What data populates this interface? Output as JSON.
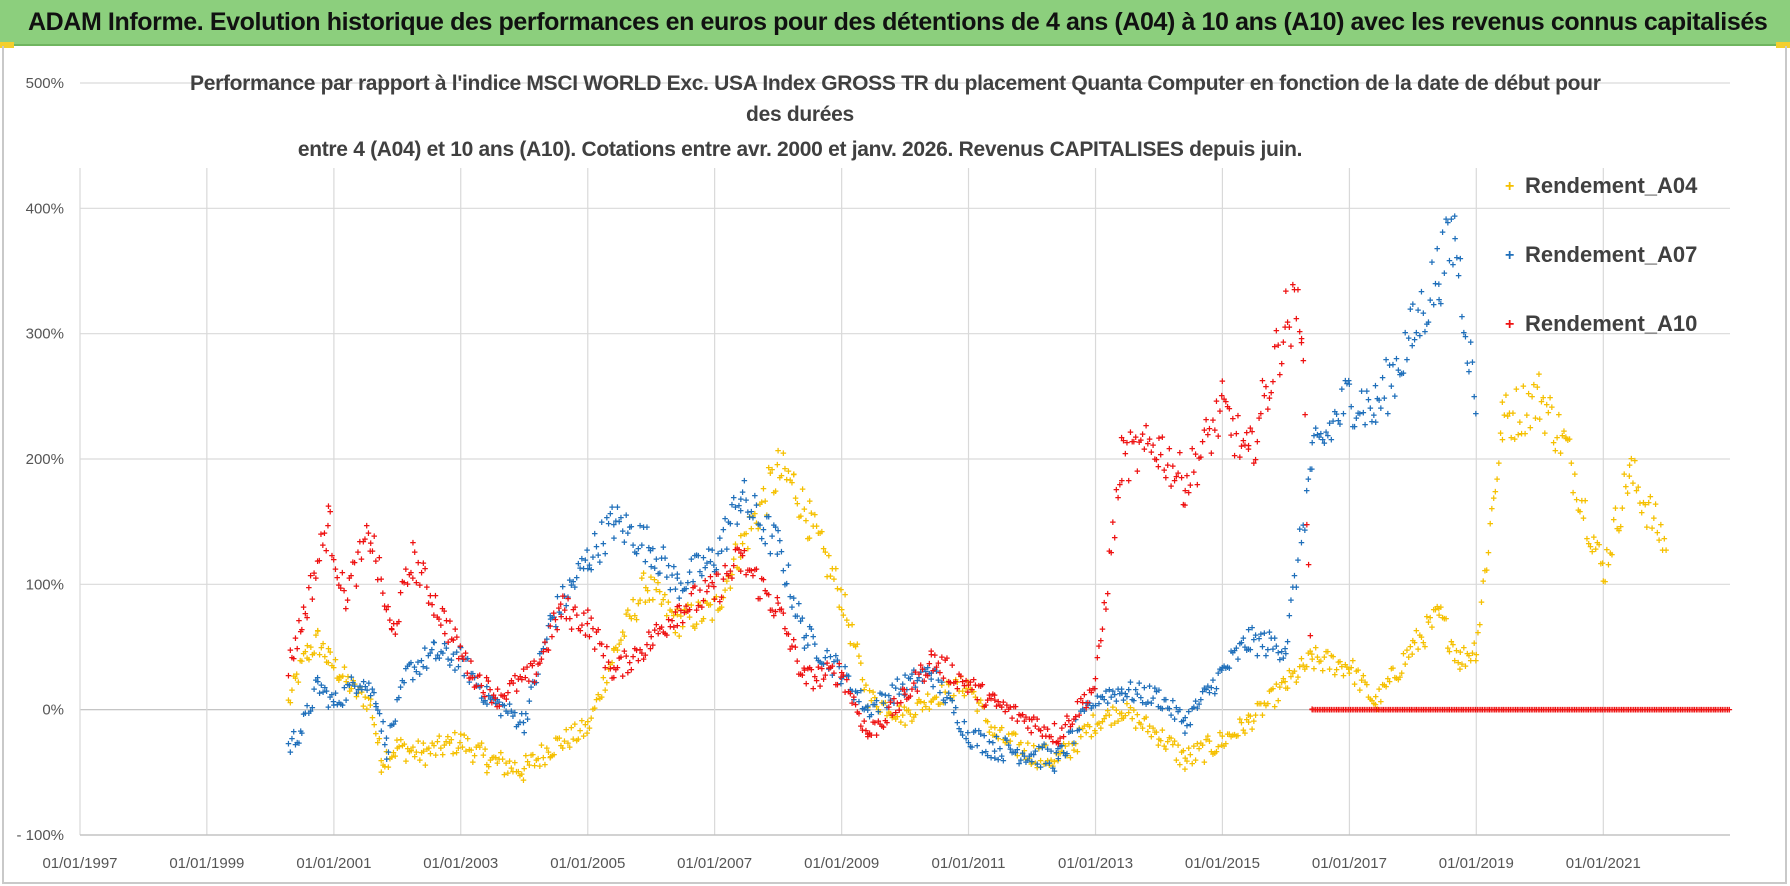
{
  "banner": {
    "title": "ADAM Informe. Evolution historique des performances en euros pour des détentions de 4 ans (A04) à 10 ans (A10) avec les revenus connus capitalisés"
  },
  "colors": {
    "banner_bg": "#8ccf7d",
    "accent_corner": "#f4cf2d",
    "A04": "#f5c000",
    "A07": "#1f6fba",
    "A10": "#ee1111"
  },
  "chart_data": {
    "type": "scatter",
    "marker": "plus",
    "title_lines": [
      "Performance par rapport à l'indice MSCI WORLD Exc. USA Index GROSS TR  du placement Quanta Computer  en fonction de la date de début pour",
      "des durées",
      "entre 4 (A04) et 10 ans (A10).  Cotations entre avr. 2000 et janv. 2026. Revenus CAPITALISES depuis juin."
    ],
    "x_type": "date",
    "xlim": [
      "1997-01-01",
      "2022-12-31"
    ],
    "x_tick_labels": [
      "01/01/1997",
      "01/01/1999",
      "01/01/2001",
      "01/01/2003",
      "01/01/2005",
      "01/01/2007",
      "01/01/2009",
      "01/01/2011",
      "01/01/2013",
      "01/01/2015",
      "01/01/2017",
      "01/01/2019",
      "01/01/2021"
    ],
    "x_ticks": [
      "1997-01-01",
      "1999-01-01",
      "2001-01-01",
      "2003-01-01",
      "2005-01-01",
      "2007-01-01",
      "2009-01-01",
      "2011-01-01",
      "2013-01-01",
      "2015-01-01",
      "2017-01-01",
      "2019-01-01",
      "2021-01-01"
    ],
    "ylim": [
      -100,
      500
    ],
    "y_ticks": [
      -100,
      0,
      100,
      200,
      300,
      400,
      500
    ],
    "y_tick_labels": [
      "- 100%",
      "0%",
      "100%",
      "200%",
      "300%",
      "400%",
      "500%"
    ],
    "grid": true,
    "legend_position": "top-right",
    "series": [
      {
        "name": "Rendement_A04",
        "color": "#f5c000",
        "points": [
          [
            "2000-04-15",
            5
          ],
          [
            "2000-06-01",
            25
          ],
          [
            "2000-08-01",
            45
          ],
          [
            "2000-10-01",
            55
          ],
          [
            "2000-12-01",
            40
          ],
          [
            "2001-02-01",
            30
          ],
          [
            "2001-05-01",
            15
          ],
          [
            "2001-08-01",
            5
          ],
          [
            "2001-10-01",
            -40
          ],
          [
            "2002-01-01",
            -30
          ],
          [
            "2002-06-01",
            -35
          ],
          [
            "2003-01-01",
            -25
          ],
          [
            "2003-06-01",
            -40
          ],
          [
            "2004-01-01",
            -48
          ],
          [
            "2004-06-01",
            -30
          ],
          [
            "2005-01-01",
            -15
          ],
          [
            "2005-06-01",
            45
          ],
          [
            "2005-12-01",
            100
          ],
          [
            "2006-06-01",
            70
          ],
          [
            "2007-01-01",
            80
          ],
          [
            "2007-06-01",
            130
          ],
          [
            "2008-01-01",
            190
          ],
          [
            "2008-04-01",
            180
          ],
          [
            "2008-07-01",
            150
          ],
          [
            "2009-01-01",
            90
          ],
          [
            "2009-06-01",
            10
          ],
          [
            "2010-01-01",
            -5
          ],
          [
            "2010-06-01",
            10
          ],
          [
            "2011-01-01",
            20
          ],
          [
            "2011-06-01",
            -20
          ],
          [
            "2012-01-01",
            -35
          ],
          [
            "2012-06-01",
            -40
          ],
          [
            "2013-01-01",
            -10
          ],
          [
            "2013-06-01",
            0
          ],
          [
            "2014-01-01",
            -20
          ],
          [
            "2014-06-01",
            -40
          ],
          [
            "2015-01-01",
            -25
          ],
          [
            "2015-06-01",
            -10
          ],
          [
            "2016-01-01",
            20
          ],
          [
            "2016-06-01",
            40
          ],
          [
            "2017-01-01",
            35
          ],
          [
            "2017-06-01",
            5
          ],
          [
            "2018-01-01",
            50
          ],
          [
            "2018-06-01",
            75
          ],
          [
            "2018-10-01",
            40
          ],
          [
            "2019-01-01",
            50
          ],
          [
            "2019-06-01",
            230
          ],
          [
            "2020-01-01",
            250
          ],
          [
            "2020-06-01",
            210
          ],
          [
            "2021-01-01",
            110
          ],
          [
            "2021-06-01",
            190
          ],
          [
            "2022-01-01",
            130
          ]
        ]
      },
      {
        "name": "Rendement_A07",
        "color": "#1f6fba",
        "points": [
          [
            "2000-04-15",
            -30
          ],
          [
            "2000-07-01",
            -15
          ],
          [
            "2000-10-01",
            20
          ],
          [
            "2001-01-01",
            5
          ],
          [
            "2001-06-01",
            25
          ],
          [
            "2001-09-01",
            10
          ],
          [
            "2001-11-01",
            -30
          ],
          [
            "2002-03-01",
            30
          ],
          [
            "2002-08-01",
            45
          ],
          [
            "2003-01-01",
            40
          ],
          [
            "2003-06-01",
            10
          ],
          [
            "2004-01-01",
            -10
          ],
          [
            "2004-06-01",
            70
          ],
          [
            "2005-01-01",
            120
          ],
          [
            "2005-06-01",
            150
          ],
          [
            "2006-01-01",
            130
          ],
          [
            "2006-06-01",
            100
          ],
          [
            "2007-01-01",
            120
          ],
          [
            "2007-06-01",
            170
          ],
          [
            "2008-01-01",
            130
          ],
          [
            "2008-06-01",
            60
          ],
          [
            "2009-01-01",
            30
          ],
          [
            "2009-06-01",
            0
          ],
          [
            "2010-01-01",
            20
          ],
          [
            "2010-06-01",
            30
          ],
          [
            "2011-01-01",
            -20
          ],
          [
            "2011-06-01",
            -30
          ],
          [
            "2012-01-01",
            -35
          ],
          [
            "2012-06-01",
            -40
          ],
          [
            "2013-01-01",
            10
          ],
          [
            "2013-06-01",
            15
          ],
          [
            "2014-01-01",
            10
          ],
          [
            "2014-06-01",
            -10
          ],
          [
            "2015-01-01",
            30
          ],
          [
            "2015-06-01",
            55
          ],
          [
            "2016-01-01",
            50
          ],
          [
            "2016-06-01",
            200
          ],
          [
            "2017-01-01",
            250
          ],
          [
            "2017-06-01",
            240
          ],
          [
            "2018-01-01",
            300
          ],
          [
            "2018-06-01",
            350
          ],
          [
            "2018-09-01",
            380
          ],
          [
            "2019-01-01",
            240
          ]
        ]
      },
      {
        "name": "Rendement_A10",
        "color": "#ee1111",
        "points": [
          [
            "2000-04-15",
            35
          ],
          [
            "2000-07-01",
            70
          ],
          [
            "2000-12-01",
            150
          ],
          [
            "2001-03-01",
            90
          ],
          [
            "2001-08-01",
            140
          ],
          [
            "2001-12-01",
            60
          ],
          [
            "2002-04-01",
            120
          ],
          [
            "2002-10-01",
            70
          ],
          [
            "2003-03-01",
            30
          ],
          [
            "2003-08-01",
            10
          ],
          [
            "2004-03-01",
            30
          ],
          [
            "2004-08-01",
            80
          ],
          [
            "2005-01-01",
            70
          ],
          [
            "2005-06-01",
            30
          ],
          [
            "2006-01-01",
            55
          ],
          [
            "2006-06-01",
            80
          ],
          [
            "2007-01-01",
            95
          ],
          [
            "2007-06-01",
            120
          ],
          [
            "2008-01-01",
            80
          ],
          [
            "2008-06-01",
            25
          ],
          [
            "2009-01-01",
            30
          ],
          [
            "2009-06-01",
            -20
          ],
          [
            "2010-01-01",
            10
          ],
          [
            "2010-06-01",
            40
          ],
          [
            "2011-01-01",
            20
          ],
          [
            "2011-06-01",
            5
          ],
          [
            "2012-01-01",
            -10
          ],
          [
            "2012-06-01",
            -20
          ],
          [
            "2013-01-01",
            20
          ],
          [
            "2013-06-01",
            200
          ],
          [
            "2014-01-01",
            210
          ],
          [
            "2014-06-01",
            180
          ],
          [
            "2015-01-01",
            240
          ],
          [
            "2015-06-01",
            200
          ],
          [
            "2016-01-01",
            310
          ],
          [
            "2016-04-01",
            320
          ],
          [
            "2016-06-01",
            0
          ],
          [
            "2022-12-31",
            0
          ]
        ]
      }
    ]
  }
}
